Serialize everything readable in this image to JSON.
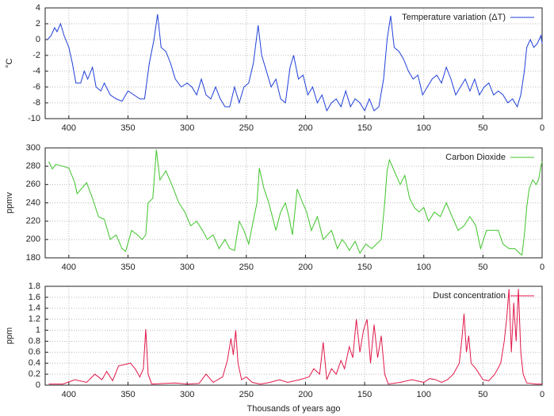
{
  "chart_data": [
    {
      "type": "line",
      "ylabel": "°C",
      "legend": "upper right",
      "grid": true,
      "xlim": [
        420,
        0
      ],
      "xticks": [
        400,
        350,
        300,
        250,
        200,
        150,
        100,
        50,
        0
      ],
      "ylim": [
        -10,
        4
      ],
      "yticks": [
        -10,
        -8,
        -6,
        -4,
        -2,
        0,
        2,
        4
      ],
      "x": [
        418,
        415,
        412,
        410,
        407,
        404,
        400,
        397,
        394,
        390,
        387,
        384,
        380,
        377,
        373,
        370,
        365,
        360,
        355,
        350,
        345,
        340,
        336,
        332,
        328,
        325,
        322,
        318,
        314,
        310,
        305,
        300,
        296,
        292,
        288,
        284,
        280,
        276,
        272,
        268,
        264,
        260,
        256,
        252,
        248,
        244,
        240,
        237,
        233,
        229,
        225,
        221,
        217,
        213,
        210,
        206,
        202,
        198,
        194,
        190,
        186,
        182,
        178,
        174,
        170,
        166,
        162,
        158,
        154,
        150,
        146,
        142,
        138,
        134,
        131,
        128,
        125,
        121,
        117,
        113,
        109,
        105,
        101,
        97,
        93,
        89,
        85,
        81,
        77,
        73,
        69,
        65,
        61,
        57,
        53,
        49,
        45,
        41,
        37,
        33,
        29,
        25,
        21,
        18,
        15,
        13,
        10,
        7,
        4,
        1,
        0
      ],
      "series": [
        {
          "name": "Temperature variation (ΔT)",
          "color": "#1f3fd8",
          "values": [
            0,
            0.5,
            1.5,
            1,
            2,
            0.5,
            -1,
            -3,
            -5.5,
            -5.5,
            -4,
            -5,
            -3.5,
            -6,
            -6.5,
            -5.5,
            -7,
            -7.5,
            -7.8,
            -6.5,
            -7,
            -7.5,
            -7.5,
            -3,
            0,
            3.2,
            -1,
            -1.5,
            -3,
            -5,
            -6,
            -5.5,
            -6,
            -7,
            -5,
            -7,
            -7.5,
            -6,
            -7.5,
            -8.5,
            -8.5,
            -6,
            -8,
            -6,
            -5.5,
            -3,
            1.8,
            -2,
            -4,
            -6,
            -5,
            -7.5,
            -8,
            -3.5,
            -2,
            -5,
            -4.5,
            -7,
            -6,
            -8,
            -7,
            -9,
            -8,
            -7.5,
            -8.5,
            -6.5,
            -8.5,
            -7.5,
            -8,
            -9,
            -7.5,
            -9,
            -8.5,
            -5,
            0,
            3,
            -1,
            -1.5,
            -2.5,
            -4,
            -5,
            -4.5,
            -7,
            -6,
            -5,
            -4.5,
            -5.5,
            -3.5,
            -5,
            -7,
            -6,
            -5,
            -6.5,
            -5,
            -7,
            -6,
            -5.5,
            -7,
            -6.5,
            -7,
            -8,
            -7.5,
            -8.5,
            -7,
            -4,
            -1,
            0,
            -1,
            -0.5,
            0.5,
            -0.5
          ]
        }
      ]
    },
    {
      "type": "line",
      "ylabel": "ppmv",
      "legend": "upper right",
      "grid": true,
      "xlim": [
        420,
        0
      ],
      "xticks": [
        400,
        350,
        300,
        250,
        200,
        150,
        100,
        50,
        0
      ],
      "ylim": [
        180,
        300
      ],
      "yticks": [
        180,
        200,
        220,
        240,
        260,
        280,
        300
      ],
      "x": [
        417,
        414,
        411,
        405,
        400,
        395,
        393,
        385,
        380,
        375,
        370,
        365,
        360,
        355,
        352,
        347,
        342,
        338,
        335,
        333,
        329,
        326,
        323,
        318,
        313,
        307,
        302,
        297,
        292,
        287,
        283,
        278,
        273,
        268,
        264,
        260,
        256,
        252,
        248,
        245,
        241,
        239,
        235,
        231,
        225,
        221,
        217,
        214,
        211,
        207,
        204,
        199,
        195,
        190,
        185,
        178,
        173,
        169,
        166,
        163,
        158,
        154,
        149,
        144,
        140,
        136,
        133,
        131,
        129,
        125,
        120,
        116,
        112,
        108,
        104,
        100,
        96,
        91,
        86,
        81,
        76,
        71,
        66,
        61,
        56,
        52,
        47,
        43,
        37,
        33,
        28,
        23,
        19,
        17,
        15,
        13,
        11,
        8,
        5,
        3,
        1,
        0
      ],
      "series": [
        {
          "name": "Carbon Dioxide",
          "color": "#3fc42a",
          "values": [
            285,
            277,
            282,
            280,
            278,
            262,
            250,
            262,
            245,
            225,
            222,
            200,
            205,
            190,
            187,
            210,
            205,
            200,
            205,
            240,
            245,
            298,
            265,
            275,
            260,
            240,
            230,
            215,
            220,
            210,
            200,
            205,
            190,
            200,
            190,
            188,
            220,
            210,
            195,
            215,
            240,
            278,
            255,
            240,
            210,
            230,
            240,
            225,
            205,
            255,
            245,
            230,
            210,
            225,
            200,
            210,
            190,
            200,
            195,
            188,
            198,
            185,
            195,
            190,
            195,
            200,
            240,
            275,
            287,
            275,
            260,
            270,
            245,
            235,
            230,
            235,
            220,
            230,
            225,
            240,
            225,
            210,
            215,
            225,
            215,
            190,
            210,
            210,
            210,
            195,
            190,
            190,
            185,
            183,
            205,
            235,
            255,
            265,
            260,
            265,
            280,
            285
          ]
        }
      ]
    },
    {
      "type": "line",
      "ylabel": "ppm",
      "xlabel": "Thousands of years ago",
      "legend": "upper right",
      "grid": true,
      "xlim": [
        420,
        0
      ],
      "xticks": [
        400,
        350,
        300,
        250,
        200,
        150,
        100,
        50,
        0
      ],
      "ylim": [
        0,
        1.8
      ],
      "yticks": [
        0,
        0.2,
        0.4,
        0.6,
        0.8,
        1,
        1.2,
        1.4,
        1.6,
        1.8
      ],
      "x": [
        417,
        405,
        395,
        385,
        378,
        372,
        368,
        363,
        358,
        352,
        348,
        344,
        340,
        337,
        335,
        333,
        330,
        320,
        310,
        300,
        290,
        284,
        278,
        270,
        266,
        263,
        261,
        259,
        257,
        254,
        250,
        245,
        238,
        230,
        222,
        215,
        205,
        197,
        193,
        188,
        185,
        182,
        178,
        174,
        170,
        167,
        163,
        160,
        157,
        154,
        151,
        148,
        145,
        142,
        139,
        136,
        133,
        130,
        120,
        110,
        100,
        95,
        90,
        85,
        80,
        75,
        70,
        68,
        66,
        64,
        62,
        60,
        56,
        50,
        45,
        40,
        35,
        32,
        30,
        28,
        26,
        24,
        22,
        20,
        18,
        16,
        13,
        5,
        0
      ],
      "series": [
        {
          "name": "Dust concentration",
          "color": "#e0184a",
          "values": [
            0.02,
            0.02,
            0.1,
            0.05,
            0.2,
            0.1,
            0.25,
            0.08,
            0.35,
            0.38,
            0.4,
            0.3,
            0.15,
            0.3,
            1.02,
            0.2,
            0.02,
            0.03,
            0.04,
            0.02,
            0.03,
            0.2,
            0.05,
            0.15,
            0.45,
            0.85,
            0.55,
            1.0,
            0.4,
            0.1,
            0.15,
            0.05,
            0.02,
            0.05,
            0.1,
            0.05,
            0.1,
            0.15,
            0.3,
            0.2,
            0.78,
            0.1,
            0.3,
            0.2,
            0.45,
            0.3,
            0.7,
            0.5,
            1.2,
            0.6,
            1.0,
            1.2,
            0.4,
            1.1,
            0.5,
            0.9,
            0.2,
            0.02,
            0.05,
            0.1,
            0.05,
            0.12,
            0.1,
            0.05,
            0.1,
            0.2,
            0.4,
            0.8,
            1.3,
            0.6,
            0.9,
            0.4,
            0.3,
            0.1,
            0.08,
            0.2,
            0.4,
            0.8,
            1.2,
            1.75,
            0.6,
            1.5,
            0.8,
            1.75,
            0.6,
            0.2,
            0.04,
            0.02,
            0.02
          ]
        }
      ]
    }
  ]
}
